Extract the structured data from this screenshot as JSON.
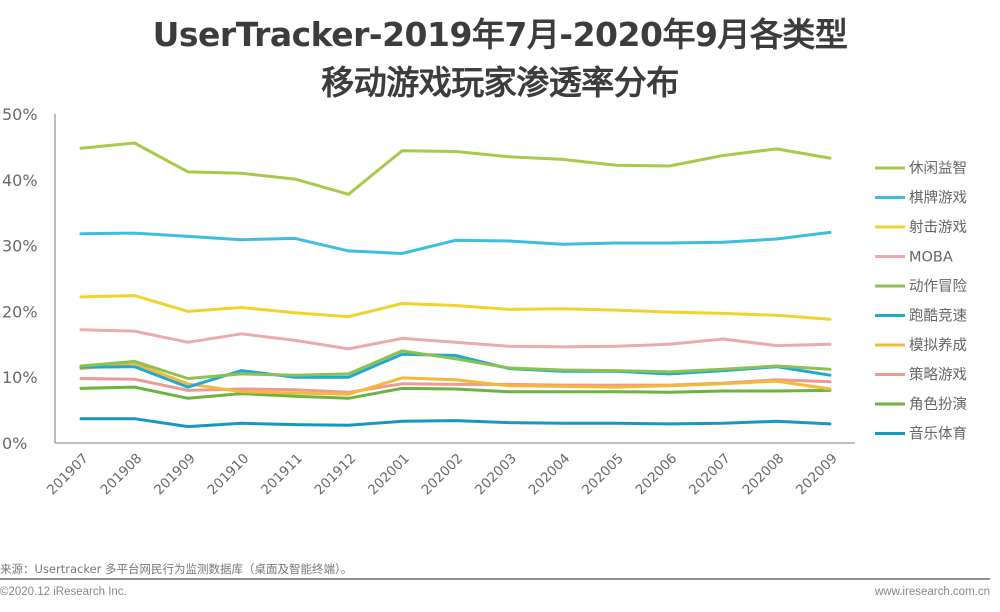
{
  "chart_data": {
    "type": "line",
    "title_line1": "UserTracker-2019年7月-2020年9月各类型",
    "title_line2": "移动游戏玩家渗透率分布",
    "xlabel": "",
    "ylabel": "",
    "ylim": [
      0,
      50
    ],
    "yticks": [
      "0%",
      "10%",
      "20%",
      "30%",
      "40%",
      "50%"
    ],
    "ytick_values": [
      0,
      10,
      20,
      30,
      40,
      50
    ],
    "grid": false,
    "legend_position": "right",
    "categories": [
      "201907",
      "201908",
      "201909",
      "201910",
      "201911",
      "201912",
      "202001",
      "202002",
      "202003",
      "202004",
      "202005",
      "202006",
      "202007",
      "202008",
      "202009"
    ],
    "series": [
      {
        "name": "休闲益智",
        "color": "#a9c94a",
        "values": [
          44.8,
          45.6,
          41.2,
          41.0,
          40.1,
          37.8,
          44.4,
          44.3,
          43.5,
          43.1,
          42.2,
          42.1,
          43.7,
          44.7,
          43.3
        ]
      },
      {
        "name": "棋牌游戏",
        "color": "#3fbde0",
        "values": [
          31.8,
          31.9,
          31.4,
          30.9,
          31.1,
          29.2,
          28.8,
          30.8,
          30.7,
          30.2,
          30.4,
          30.4,
          30.5,
          31.0,
          32.0
        ]
      },
      {
        "name": "射击游戏",
        "color": "#f2d22e",
        "values": [
          22.2,
          22.4,
          20.0,
          20.6,
          19.8,
          19.2,
          21.2,
          20.9,
          20.3,
          20.4,
          20.2,
          19.9,
          19.7,
          19.4,
          18.8
        ]
      },
      {
        "name": "MOBA",
        "color": "#eeaaaa",
        "values": [
          17.2,
          17.0,
          15.3,
          16.6,
          15.6,
          14.3,
          15.9,
          15.3,
          14.7,
          14.6,
          14.7,
          15.0,
          15.8,
          14.8,
          15.0
        ]
      },
      {
        "name": "动作冒险",
        "color": "#8cc152",
        "values": [
          11.7,
          12.4,
          9.8,
          10.5,
          10.3,
          10.5,
          14.0,
          12.8,
          11.4,
          11.1,
          11.0,
          10.8,
          11.2,
          11.7,
          11.2
        ]
      },
      {
        "name": "跑酷竞速",
        "color": "#1fa9cf",
        "values": [
          11.5,
          11.6,
          8.5,
          11.0,
          10.0,
          10.0,
          13.5,
          13.3,
          11.3,
          10.9,
          10.9,
          10.5,
          11.0,
          11.6,
          10.3
        ]
      },
      {
        "name": "模拟养成",
        "color": "#f3b93a",
        "values": [
          11.3,
          12.1,
          9.0,
          7.8,
          7.6,
          7.4,
          9.9,
          9.6,
          8.7,
          8.6,
          8.5,
          8.7,
          9.0,
          9.4,
          8.2
        ]
      },
      {
        "name": "策略游戏",
        "color": "#ec9a96",
        "values": [
          9.8,
          9.7,
          8.0,
          8.2,
          8.1,
          7.7,
          9.0,
          8.9,
          8.9,
          8.8,
          8.8,
          8.8,
          9.1,
          9.6,
          9.3
        ]
      },
      {
        "name": "角色扮演",
        "color": "#6db33f",
        "values": [
          8.3,
          8.5,
          6.8,
          7.5,
          7.1,
          6.8,
          8.3,
          8.2,
          7.8,
          7.8,
          7.8,
          7.7,
          7.9,
          7.9,
          8.0
        ]
      },
      {
        "name": "音乐体育",
        "color": "#1b96c4",
        "values": [
          3.7,
          3.7,
          2.5,
          3.0,
          2.8,
          2.7,
          3.3,
          3.4,
          3.1,
          3.0,
          3.0,
          2.9,
          3.0,
          3.3,
          2.9
        ]
      }
    ]
  },
  "footer": {
    "source": "来源：Usertracker 多平台网民行为监测数据库（桌面及智能终端）。",
    "copyright": "©2020.12 iResearch Inc.",
    "website": "www.iresearch.com.cn"
  },
  "colors": {
    "axis": "#a8a8a8",
    "title": "#3c3c3c"
  }
}
